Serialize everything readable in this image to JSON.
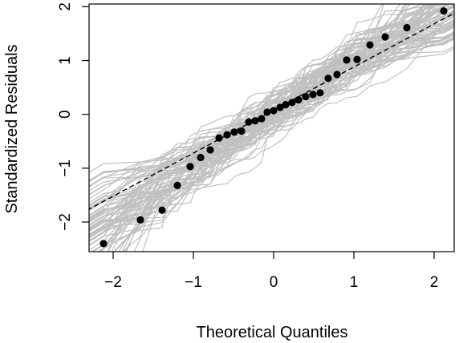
{
  "chart_data": {
    "type": "scatter",
    "xlabel": "Theoretical Quantiles",
    "ylabel": "Standardized Residuals",
    "xlim": [
      -2.3,
      2.25
    ],
    "ylim": [
      -2.55,
      2.05
    ],
    "x_ticks": [
      -2,
      -1,
      0,
      1,
      2
    ],
    "y_ticks": [
      -2,
      -1,
      0,
      1,
      2
    ],
    "x_tick_labels": [
      "−2",
      "−1",
      "0",
      "1",
      "2"
    ],
    "y_tick_labels": [
      "−2",
      "−1",
      "0",
      "1",
      "2"
    ],
    "points": [
      {
        "x": -2.12,
        "y": -2.4
      },
      {
        "x": -1.66,
        "y": -1.96
      },
      {
        "x": -1.39,
        "y": -1.78
      },
      {
        "x": -1.2,
        "y": -1.32
      },
      {
        "x": -1.04,
        "y": -0.97
      },
      {
        "x": -0.91,
        "y": -0.8
      },
      {
        "x": -0.79,
        "y": -0.66
      },
      {
        "x": -0.68,
        "y": -0.44
      },
      {
        "x": -0.58,
        "y": -0.38
      },
      {
        "x": -0.49,
        "y": -0.33
      },
      {
        "x": -0.4,
        "y": -0.31
      },
      {
        "x": -0.31,
        "y": -0.14
      },
      {
        "x": -0.23,
        "y": -0.12
      },
      {
        "x": -0.15,
        "y": -0.08
      },
      {
        "x": -0.08,
        "y": 0.04
      },
      {
        "x": 0.0,
        "y": 0.07
      },
      {
        "x": 0.08,
        "y": 0.13
      },
      {
        "x": 0.15,
        "y": 0.18
      },
      {
        "x": 0.23,
        "y": 0.22
      },
      {
        "x": 0.31,
        "y": 0.27
      },
      {
        "x": 0.4,
        "y": 0.33
      },
      {
        "x": 0.49,
        "y": 0.37
      },
      {
        "x": 0.58,
        "y": 0.4
      },
      {
        "x": 0.68,
        "y": 0.67
      },
      {
        "x": 0.79,
        "y": 0.74
      },
      {
        "x": 0.91,
        "y": 1.01
      },
      {
        "x": 1.04,
        "y": 1.02
      },
      {
        "x": 1.2,
        "y": 1.29
      },
      {
        "x": 1.39,
        "y": 1.44
      },
      {
        "x": 1.66,
        "y": 1.61
      },
      {
        "x": 2.12,
        "y": 1.92
      }
    ],
    "reference_line": {
      "intercept": 0.08,
      "slope": 0.8,
      "style": "dashed",
      "color": "#000000"
    },
    "simulation_envelope": {
      "count": 80,
      "color": "#c0c0c0",
      "spread": 0.28
    },
    "point_color": "#000000",
    "grid": false
  }
}
